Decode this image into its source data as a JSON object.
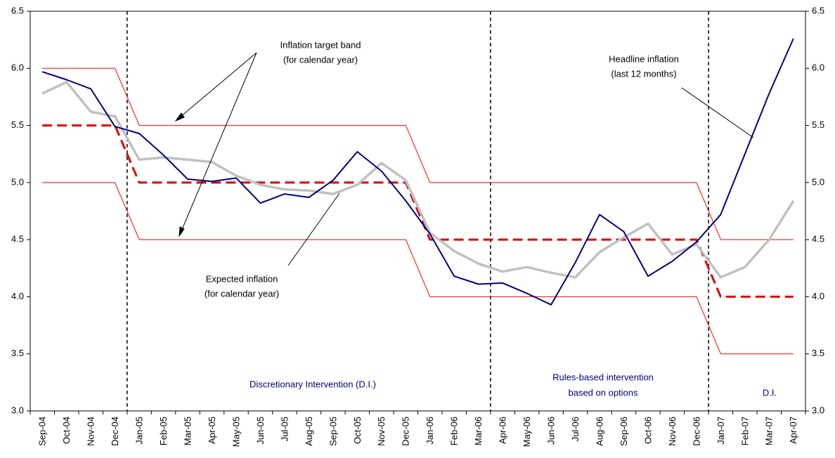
{
  "chart_data": {
    "type": "line",
    "categories": [
      "Sep-04",
      "Oct-04",
      "Nov-04",
      "Dec-04",
      "Jan-05",
      "Feb-05",
      "Mar-05",
      "Apr-05",
      "May-05",
      "Jun-05",
      "Jul-05",
      "Aug-05",
      "Sep-05",
      "Oct-05",
      "Nov-05",
      "Dec-05",
      "Jan-06",
      "Feb-06",
      "Mar-06",
      "Apr-06",
      "May-06",
      "Jun-06",
      "Jul-06",
      "Aug-06",
      "Sep-06",
      "Oct-06",
      "Nov-06",
      "Dec-06",
      "Jan-07",
      "Feb-07",
      "Mar-07",
      "Apr-07"
    ],
    "series": [
      {
        "color": "#ff0000",
        "width": 1,
        "dashed": false,
        "values": [
          6.0,
          6.0,
          6.0,
          6.0,
          5.5,
          5.5,
          5.5,
          5.5,
          5.5,
          5.5,
          5.5,
          5.5,
          5.5,
          5.5,
          5.5,
          5.5,
          5.0,
          5.0,
          5.0,
          5.0,
          5.0,
          5.0,
          5.0,
          5.0,
          5.0,
          5.0,
          5.0,
          5.0,
          4.5,
          4.5,
          4.5,
          4.5
        ]
      },
      {
        "color": "#ff0000",
        "width": 1,
        "dashed": false,
        "values": [
          5.0,
          5.0,
          5.0,
          5.0,
          4.5,
          4.5,
          4.5,
          4.5,
          4.5,
          4.5,
          4.5,
          4.5,
          4.5,
          4.5,
          4.5,
          4.5,
          4.0,
          4.0,
          4.0,
          4.0,
          4.0,
          4.0,
          4.0,
          4.0,
          4.0,
          4.0,
          4.0,
          4.0,
          3.5,
          3.5,
          3.5,
          3.5
        ]
      },
      {
        "color": "#e00000",
        "width": 3,
        "dashed": true,
        "values": [
          5.5,
          5.5,
          5.5,
          5.5,
          5.0,
          5.0,
          5.0,
          5.0,
          5.0,
          5.0,
          5.0,
          5.0,
          5.0,
          5.0,
          5.0,
          5.0,
          4.5,
          4.5,
          4.5,
          4.5,
          4.5,
          4.5,
          4.5,
          4.5,
          4.5,
          4.5,
          4.5,
          4.5,
          4.0,
          4.0,
          4.0,
          4.0
        ]
      },
      {
        "color": "#c0c0c0",
        "width": 3.5,
        "dashed": false,
        "values": [
          5.78,
          5.88,
          5.62,
          5.58,
          5.2,
          5.22,
          5.2,
          5.18,
          5.06,
          4.98,
          4.94,
          4.93,
          4.9,
          4.98,
          5.17,
          5.02,
          4.56,
          4.4,
          4.29,
          4.22,
          4.26,
          4.21,
          4.17,
          4.39,
          4.52,
          4.64,
          4.37,
          4.46,
          4.17,
          4.26,
          4.5,
          4.84
        ]
      },
      {
        "color": "#000080",
        "width": 2,
        "dashed": false,
        "values": [
          5.97,
          5.9,
          5.82,
          5.49,
          5.43,
          5.24,
          5.03,
          5.01,
          5.04,
          4.82,
          4.9,
          4.87,
          5.02,
          5.27,
          5.1,
          4.84,
          4.55,
          4.18,
          4.11,
          4.12,
          4.03,
          3.93,
          4.3,
          4.72,
          4.57,
          4.18,
          4.31,
          4.48,
          4.72,
          5.25,
          5.78,
          6.26
        ]
      }
    ],
    "ylim": [
      3.0,
      6.5
    ],
    "yticks": [
      {
        "value": 3.0,
        "label": "3.0"
      },
      3.5,
      {
        "value": 4.0,
        "label": "4.0"
      },
      4.5,
      {
        "value": 5.0,
        "label": "5.0"
      },
      5.5,
      {
        "value": 6.0,
        "label": "6.0"
      },
      6.5
    ],
    "y2lim": [
      3.0,
      6.5
    ],
    "y2ticks": [
      {
        "value": 3.0,
        "label": "3.0"
      },
      3.5,
      {
        "value": 4.0,
        "label": "4.0"
      },
      4.5,
      {
        "value": 5.0,
        "label": "5.0"
      },
      5.5,
      {
        "value": 6.0,
        "label": "6.0"
      },
      6.5
    ],
    "annotations": [
      {
        "lines": [
          "Inflation target band",
          "(for calendar year)"
        ]
      },
      {
        "lines": [
          "Headline inflation",
          "(last 12 months)"
        ]
      },
      {
        "lines": [
          "Expected inflation",
          "(for calendar year)"
        ]
      },
      {
        "lines": [
          "Discretionary Intervention (D.I.)"
        ]
      },
      {
        "lines": [
          "Rules-based intervention",
          "based on options"
        ]
      },
      {
        "lines": [
          "D.I."
        ]
      }
    ]
  }
}
